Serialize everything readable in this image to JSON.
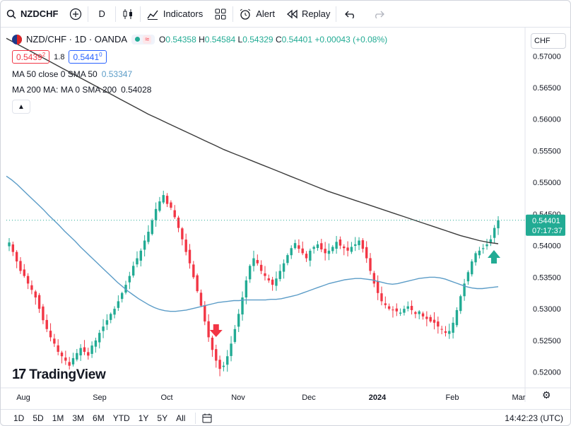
{
  "toolbar": {
    "symbol": "NZDCHF",
    "interval": "D",
    "indicators_label": "Indicators",
    "alert_label": "Alert",
    "replay_label": "Replay"
  },
  "legend": {
    "title": "NZD/CHF · 1D · OANDA",
    "ohlc": {
      "o_label": "O",
      "o": "0.54358",
      "h_label": "H",
      "h": "0.54584",
      "l_label": "L",
      "l": "0.54329",
      "c_label": "C",
      "c": "0.54401",
      "change": "+0.00043 (+0.08%)"
    },
    "sell_price": "0.5439",
    "sell_sup": "2",
    "spread": "1.8",
    "buy_price": "0.5441",
    "buy_sup": "0",
    "ma50_label": "MA 50 close 0 SMA 50",
    "ma50_value": "0.53347",
    "ma200_label": "MA 200 MA: MA 0 SMA 200",
    "ma200_value": "0.54028"
  },
  "currency": "CHF",
  "current_price_label": "0.54401",
  "countdown": "07:17:37",
  "logo_text": "TradingView",
  "bottom": {
    "ranges": [
      "1D",
      "5D",
      "1M",
      "3M",
      "6M",
      "YTD",
      "1Y",
      "5Y",
      "All"
    ],
    "time": "14:42:23 (UTC)"
  },
  "colors": {
    "up": "#22ab94",
    "down": "#f23645",
    "ma50": "#5b9cc7",
    "ma200": "#3b3b3b",
    "arrow_up": "#22ab94",
    "arrow_down": "#f23645"
  },
  "chart_data": {
    "type": "candlestick",
    "y_ticks": [
      "0.57000",
      "0.56500",
      "0.56000",
      "0.55500",
      "0.55000",
      "0.54500",
      "0.54000",
      "0.53500",
      "0.53000",
      "0.52500",
      "0.52000"
    ],
    "x_ticks": [
      "Aug",
      "Sep",
      "Oct",
      "Nov",
      "Dec",
      "2024",
      "Feb",
      "Mar"
    ],
    "ylim": [
      0.5175,
      0.5745
    ],
    "close_series": [
      0.5405,
      0.539,
      0.5375,
      0.536,
      0.5352,
      0.534,
      0.533,
      0.5318,
      0.53,
      0.5282,
      0.5268,
      0.5255,
      0.5245,
      0.5232,
      0.5225,
      0.5218,
      0.521,
      0.5222,
      0.523,
      0.5238,
      0.5232,
      0.5226,
      0.5242,
      0.525,
      0.5262,
      0.5272,
      0.5282,
      0.5292,
      0.53,
      0.5312,
      0.5325,
      0.5338,
      0.5352,
      0.5368,
      0.538,
      0.5392,
      0.5408,
      0.5422,
      0.544,
      0.5458,
      0.547,
      0.548,
      0.5466,
      0.546,
      0.5445,
      0.5428,
      0.541,
      0.539,
      0.5372,
      0.535,
      0.5328,
      0.5305,
      0.528,
      0.5255,
      0.5235,
      0.5218,
      0.5205,
      0.521,
      0.5225,
      0.5245,
      0.5268,
      0.5292,
      0.5318,
      0.5345,
      0.5368,
      0.538,
      0.5372,
      0.536,
      0.5352,
      0.5345,
      0.5338,
      0.5348,
      0.536,
      0.5372,
      0.5385,
      0.5396,
      0.5404,
      0.5395,
      0.5388,
      0.538,
      0.5392,
      0.5398,
      0.5402,
      0.5394,
      0.5388,
      0.5392,
      0.5398,
      0.5406,
      0.54,
      0.5396,
      0.5392,
      0.5398,
      0.5402,
      0.5408,
      0.5395,
      0.538,
      0.536,
      0.534,
      0.5325,
      0.5312,
      0.5306,
      0.53,
      0.5298,
      0.5296,
      0.5294,
      0.53,
      0.5304,
      0.5298,
      0.5292,
      0.5296,
      0.5288,
      0.5284,
      0.528,
      0.5278,
      0.5272,
      0.5268,
      0.5262,
      0.5265,
      0.5278,
      0.5298,
      0.532,
      0.534,
      0.5358,
      0.5375,
      0.5388,
      0.5392,
      0.5396,
      0.5402,
      0.541,
      0.5428,
      0.544
    ],
    "ma50": [
      0.551,
      0.5504,
      0.5497,
      0.5489,
      0.5481,
      0.5473,
      0.5465,
      0.5457,
      0.5448,
      0.544,
      0.5432,
      0.5423,
      0.5415,
      0.5407,
      0.5398,
      0.539,
      0.5382,
      0.5374,
      0.5366,
      0.5358,
      0.535,
      0.5342,
      0.5335,
      0.5328,
      0.5322,
      0.5316,
      0.5311,
      0.5306,
      0.5302,
      0.5299,
      0.5297,
      0.5296,
      0.5296,
      0.5297,
      0.5298,
      0.53,
      0.5302,
      0.5304,
      0.5306,
      0.5308,
      0.531,
      0.5311,
      0.5312,
      0.5313,
      0.5313,
      0.5314,
      0.5314,
      0.5314,
      0.5314,
      0.5314,
      0.5315,
      0.5315,
      0.5316,
      0.5318,
      0.532,
      0.5322,
      0.5325,
      0.5328,
      0.5331,
      0.5334,
      0.5337,
      0.534,
      0.5342,
      0.5344,
      0.5346,
      0.5347,
      0.5348,
      0.5348,
      0.5347,
      0.5346,
      0.5344,
      0.5342,
      0.534,
      0.5339,
      0.534,
      0.5342,
      0.5344,
      0.5346,
      0.5348,
      0.5349,
      0.535,
      0.535,
      0.5349,
      0.5347,
      0.5344,
      0.5341,
      0.5338,
      0.5335,
      0.5333,
      0.5332,
      0.5332,
      0.5333,
      0.5334,
      0.5335
    ],
    "ma200": [
      0.5728,
      0.572,
      0.5712,
      0.5704,
      0.5696,
      0.5688,
      0.568,
      0.5672,
      0.5664,
      0.5656,
      0.5648,
      0.564,
      0.5632,
      0.5624,
      0.5616,
      0.5608,
      0.5601,
      0.5594,
      0.5587,
      0.558,
      0.5573,
      0.5566,
      0.5559,
      0.5552,
      0.5546,
      0.554,
      0.5534,
      0.5528,
      0.5522,
      0.5516,
      0.551,
      0.5504,
      0.5498,
      0.5492,
      0.5486,
      0.5481,
      0.5476,
      0.5471,
      0.5466,
      0.5461,
      0.5456,
      0.5451,
      0.5446,
      0.5441,
      0.5436,
      0.5431,
      0.5426,
      0.5421,
      0.5416,
      0.5412,
      0.5408,
      0.5405,
      0.5403
    ]
  }
}
